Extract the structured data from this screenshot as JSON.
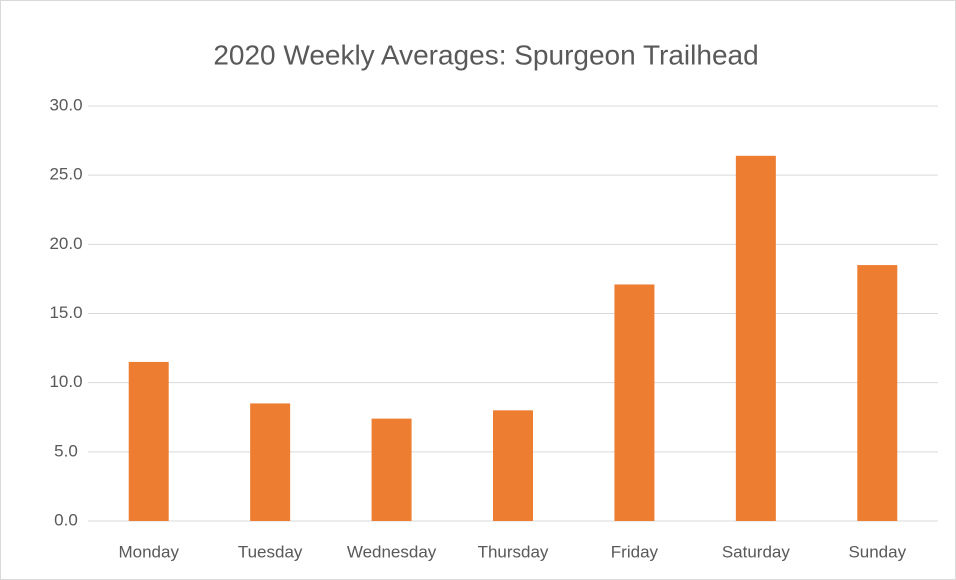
{
  "chart_data": {
    "type": "bar",
    "title": "2020 Weekly Averages: Spurgeon Trailhead",
    "categories": [
      "Monday",
      "Tuesday",
      "Wednesday",
      "Thursday",
      "Friday",
      "Saturday",
      "Sunday"
    ],
    "values": [
      11.5,
      8.5,
      7.4,
      8.0,
      17.1,
      26.4,
      18.5
    ],
    "color": "#ed7d31",
    "ylim": [
      0,
      30
    ],
    "yticks": [
      {
        "value": 0,
        "label": "0.0"
      },
      {
        "value": 5,
        "label": "5.0"
      },
      {
        "value": 10,
        "label": "10.0"
      },
      {
        "value": 15,
        "label": "15.0"
      },
      {
        "value": 20,
        "label": "20.0"
      },
      {
        "value": 25,
        "label": "25.0"
      },
      {
        "value": 30,
        "label": "30.0"
      }
    ],
    "grid": true
  }
}
